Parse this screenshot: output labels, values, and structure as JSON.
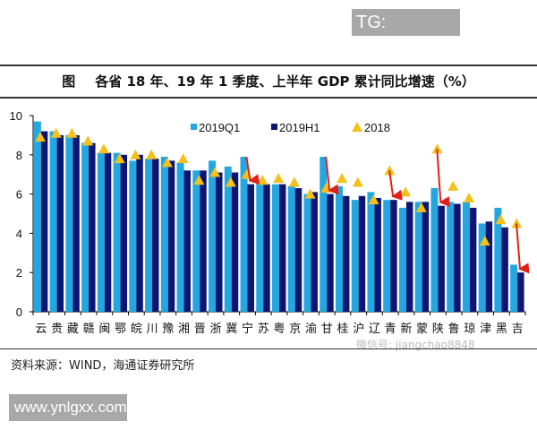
{
  "watermark_top": "TG: MYYJJPP",
  "title": {
    "fig": "图",
    "text": "各省 18 年、19 年 1 季度、上半年 GDP 累计同比增速（%）"
  },
  "source": "资料来源：WIND，海通证券研究所",
  "watermark_wechat": "微信号: jiangchao8848",
  "watermark_bottom": "www.ynlgxx.com",
  "chart_data": {
    "type": "bar",
    "title": "各省 18 年、19 年 1 季度、上半年 GDP 累计同比增速（%）",
    "ylim": [
      0,
      10
    ],
    "yticks": [
      "0",
      "2",
      "4",
      "6",
      "8",
      "10"
    ],
    "grid": false,
    "legend": "top-right",
    "categories": [
      "云",
      "贵",
      "藏",
      "赣",
      "闽",
      "鄂",
      "皖",
      "川",
      "豫",
      "湘",
      "晋",
      "浙",
      "冀",
      "宁",
      "苏",
      "粤",
      "京",
      "渝",
      "甘",
      "桂",
      "沪",
      "辽",
      "青",
      "新",
      "蒙",
      "陕",
      "鲁",
      "琼",
      "津",
      "黑",
      "吉"
    ],
    "series": [
      {
        "name": "2019Q1",
        "type": "bar",
        "color": "#22a7e0",
        "values": [
          9.7,
          9.2,
          9.0,
          8.6,
          8.1,
          8.1,
          7.7,
          7.8,
          7.9,
          7.6,
          7.2,
          7.7,
          7.4,
          7.9,
          6.7,
          6.5,
          6.4,
          6.0,
          7.9,
          6.4,
          5.7,
          6.1,
          5.7,
          5.3,
          5.6,
          6.3,
          5.6,
          5.6,
          4.5,
          5.3,
          2.4
        ]
      },
      {
        "name": "2019H1",
        "type": "bar",
        "color": "#0b1572",
        "values": [
          9.2,
          9.0,
          9.0,
          8.6,
          8.1,
          8.0,
          8.0,
          7.8,
          7.7,
          7.2,
          7.2,
          7.1,
          7.1,
          6.5,
          6.5,
          6.5,
          6.3,
          6.1,
          6.0,
          5.9,
          5.9,
          5.8,
          5.7,
          5.6,
          5.6,
          5.4,
          5.5,
          5.3,
          4.6,
          4.3,
          2.0
        ]
      },
      {
        "name": "2018",
        "type": "triangle-marker",
        "color": "#f5c01a",
        "values": [
          8.9,
          9.1,
          9.1,
          8.7,
          8.3,
          7.8,
          8.0,
          8.0,
          7.6,
          7.8,
          6.7,
          7.1,
          6.6,
          7.0,
          6.7,
          6.8,
          6.6,
          6.0,
          6.3,
          6.8,
          6.6,
          5.7,
          7.2,
          6.1,
          5.3,
          8.3,
          6.4,
          5.8,
          3.6,
          4.7,
          4.5
        ]
      }
    ],
    "annotations": {
      "arrow_color": "#e0201a",
      "arrows": [
        {
          "category": "宁",
          "from": 7.9,
          "to": 6.5
        },
        {
          "category": "甘",
          "from": 7.9,
          "to": 6.0
        },
        {
          "category": "青",
          "from": 7.2,
          "to": 5.7
        },
        {
          "category": "陕",
          "from": 8.3,
          "to": 5.4
        },
        {
          "category": "吉",
          "from": 4.5,
          "to": 2.0
        }
      ]
    }
  }
}
